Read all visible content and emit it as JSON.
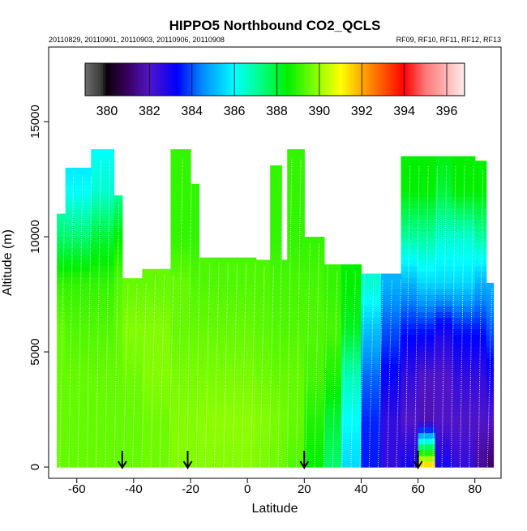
{
  "chart_data": {
    "type": "heatmap",
    "title": "HIPPO5 Northbound CO2_QCLS",
    "subtitle_left": "20110829, 20110901, 20110903, 20110906, 20110908",
    "subtitle_right": "RF09, RF10, RF11, RF12, RF13",
    "xlabel": "Latitude",
    "ylabel": "Altitude (m)",
    "xlim": [
      -69.9,
      89.2
    ],
    "ylim": [
      -490,
      18240
    ],
    "xticks": [
      -60,
      -40,
      -20,
      0,
      20,
      40,
      60,
      80
    ],
    "xtick_labels": [
      "-60",
      "-40",
      "-20",
      "0",
      "20",
      "40",
      "60",
      "80"
    ],
    "yticks": [
      0,
      5000,
      10000,
      15000
    ],
    "ytick_labels": [
      "0",
      "5000",
      "10000",
      "15000"
    ],
    "colorbar": {
      "range": [
        378.97,
        396.84
      ],
      "ticks": [
        380,
        382,
        384,
        386,
        388,
        390,
        392,
        394,
        396
      ],
      "tick_labels": [
        "380",
        "382",
        "384",
        "386",
        "388",
        "390",
        "392",
        "394",
        "396"
      ]
    },
    "arrow_latitudes": [
      -44,
      -21,
      20,
      60
    ],
    "levels_m": [
      0,
      2000,
      4000,
      6000,
      8000,
      10000,
      12000,
      14000
    ],
    "columns": [
      {
        "lat": [
          -67,
          -64
        ],
        "ceiling": 11000,
        "values": [
          389.5,
          389.5,
          389.5,
          389.5,
          389,
          387.5,
          386.5,
          386
        ]
      },
      {
        "lat": [
          -64,
          -55
        ],
        "ceiling": 13000,
        "values": [
          389.5,
          389.5,
          389.5,
          389.3,
          389,
          387.5,
          386,
          385.5
        ]
      },
      {
        "lat": [
          -55,
          -47
        ],
        "ceiling": 13800,
        "values": [
          389.5,
          389.5,
          389.5,
          389.3,
          389,
          388,
          386.5,
          386
        ]
      },
      {
        "lat": [
          -47,
          -44
        ],
        "ceiling": 11800,
        "values": [
          389.5,
          389.5,
          389.5,
          389.5,
          389.3,
          388.5,
          387,
          387
        ]
      },
      {
        "lat": [
          -44,
          -37
        ],
        "ceiling": 8200,
        "values": [
          389.5,
          389.5,
          389.6,
          389.8,
          389.5,
          389.5,
          389.5,
          389.5
        ]
      },
      {
        "lat": [
          -37,
          -27
        ],
        "ceiling": 8600,
        "values": [
          389.6,
          389.6,
          389.8,
          389.8,
          389.5,
          389.5,
          389.5,
          389.5
        ]
      },
      {
        "lat": [
          -27,
          -20
        ],
        "ceiling": 13800,
        "values": [
          389.8,
          389.8,
          389.7,
          389.5,
          389.5,
          389,
          389,
          389
        ]
      },
      {
        "lat": [
          -20,
          -17
        ],
        "ceiling": 12300,
        "values": [
          389.8,
          389.8,
          389.7,
          389.5,
          389.3,
          389,
          389,
          389
        ]
      },
      {
        "lat": [
          -17,
          3
        ],
        "ceiling": 9100,
        "values": [
          389.8,
          389.9,
          389.7,
          389.5,
          389.3,
          389.2,
          389,
          389
        ]
      },
      {
        "lat": [
          3,
          8
        ],
        "ceiling": 9000,
        "values": [
          389.7,
          389.8,
          389.6,
          389.4,
          389.3,
          389.2,
          389,
          389
        ]
      },
      {
        "lat": [
          8,
          12
        ],
        "ceiling": 13100,
        "values": [
          389.6,
          389.7,
          389.5,
          389.3,
          389.2,
          389,
          389,
          389
        ]
      },
      {
        "lat": [
          12,
          14
        ],
        "ceiling": 9000,
        "values": [
          389.5,
          389.6,
          389.5,
          389.3,
          389.2,
          389,
          389,
          389
        ]
      },
      {
        "lat": [
          14,
          20
        ],
        "ceiling": 13800,
        "values": [
          389.3,
          389.5,
          389.5,
          389.3,
          389.2,
          389,
          389,
          389
        ]
      },
      {
        "lat": [
          20,
          27
        ],
        "ceiling": 10000,
        "values": [
          388.5,
          388.8,
          389.2,
          389.3,
          389.2,
          389,
          389,
          389
        ]
      },
      {
        "lat": [
          27,
          33
        ],
        "ceiling": 8800,
        "values": [
          387.5,
          388,
          388.8,
          389.2,
          389,
          389,
          389,
          389
        ]
      },
      {
        "lat": [
          33,
          40
        ],
        "ceiling": 8800,
        "values": [
          385.5,
          386,
          386.8,
          388.2,
          388.5,
          388.5,
          388.5,
          388.5
        ]
      },
      {
        "lat": [
          40,
          47
        ],
        "ceiling": 8400,
        "values": [
          383.5,
          383.6,
          384.2,
          385.2,
          386.5,
          386,
          386,
          386
        ]
      },
      {
        "lat": [
          47,
          54
        ],
        "ceiling": 8400,
        "values": [
          382.5,
          382.5,
          383.2,
          384,
          385,
          385,
          385,
          385
        ]
      },
      {
        "lat": [
          54,
          60
        ],
        "ceiling": 13500,
        "values": [
          383,
          382,
          382.5,
          383.5,
          385,
          387,
          388.5,
          388.5
        ]
      },
      {
        "lat": [
          60,
          66
        ],
        "ceiling": 13500,
        "values": [
          392,
          381.8,
          382,
          383.5,
          385.5,
          387,
          388.5,
          388.5
        ]
      },
      {
        "lat": [
          66,
          72
        ],
        "ceiling": 13500,
        "values": [
          383,
          382,
          382,
          383,
          385.5,
          386.5,
          388,
          388.5
        ]
      },
      {
        "lat": [
          72,
          80
        ],
        "ceiling": 13500,
        "values": [
          382.5,
          382,
          382.5,
          383.5,
          385.5,
          386.5,
          388.5,
          388.5
        ]
      },
      {
        "lat": [
          80,
          84
        ],
        "ceiling": 13300,
        "values": [
          381.5,
          382,
          382.5,
          383.5,
          385,
          387,
          388.5,
          388.5
        ]
      },
      {
        "lat": [
          84,
          86.5
        ],
        "ceiling": 8000,
        "values": [
          381,
          382,
          383,
          384,
          385,
          385,
          385,
          385
        ]
      }
    ]
  }
}
